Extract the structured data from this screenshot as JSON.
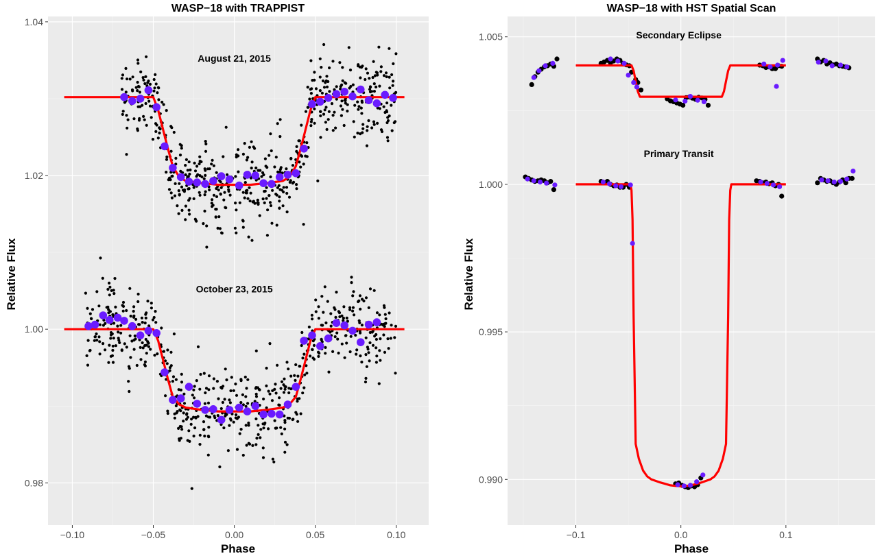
{
  "chart_data": [
    {
      "type": "scatter",
      "title": "WASP−18 with TRAPPIST",
      "xlabel": "Phase",
      "ylabel": "Relative Flux",
      "xlim": [
        -0.115,
        0.12
      ],
      "ylim": [
        0.9745,
        1.0407
      ],
      "xticks": [
        -0.1,
        -0.05,
        0.0,
        0.05,
        0.1
      ],
      "xtick_labels": [
        "−0.10",
        "−0.05",
        "0.00",
        "0.05",
        "0.10"
      ],
      "yticks": [
        0.98,
        1.0,
        1.02,
        1.04
      ],
      "ytick_labels": [
        "0.98",
        "1.00",
        "1.02",
        "1.04"
      ],
      "grid": true,
      "annotations": [
        {
          "text": "August 21, 2015",
          "x": 0.0,
          "y": 1.0348
        },
        {
          "text": "October 23, 2015",
          "x": 0.0,
          "y": 1.0048
        }
      ],
      "colors": {
        "raw": "#000000",
        "binned": "#6a1bff",
        "model": "#ff0000"
      },
      "series": [
        {
          "epoch": "August 21, 2015",
          "kind": "model",
          "x": [
            -0.105,
            -0.05,
            -0.047,
            -0.044,
            -0.041,
            -0.038,
            -0.034,
            -0.03,
            -0.02,
            -0.01,
            0.0,
            0.01,
            0.02,
            0.03,
            0.034,
            0.038,
            0.041,
            0.044,
            0.047,
            0.05,
            0.105
          ],
          "y": [
            1.0302,
            1.0302,
            1.0285,
            1.026,
            1.0235,
            1.0212,
            1.0198,
            1.0193,
            1.019,
            1.0188,
            1.0188,
            1.0188,
            1.019,
            1.0193,
            1.0198,
            1.0212,
            1.0235,
            1.026,
            1.0285,
            1.0302,
            1.0302
          ]
        },
        {
          "epoch": "August 21, 2015",
          "kind": "binned",
          "x": [
            -0.068,
            -0.063,
            -0.058,
            -0.053,
            -0.048,
            -0.043,
            -0.038,
            -0.033,
            -0.028,
            -0.023,
            -0.018,
            -0.013,
            -0.008,
            -0.003,
            0.003,
            0.008,
            0.013,
            0.018,
            0.023,
            0.028,
            0.033,
            0.038,
            0.043,
            0.048,
            0.053,
            0.058,
            0.063,
            0.068,
            0.073,
            0.078,
            0.083,
            0.088,
            0.093,
            0.098
          ],
          "y": [
            1.0302,
            1.0297,
            1.03,
            1.0311,
            1.0289,
            1.0238,
            1.021,
            1.0198,
            1.0192,
            1.0191,
            1.0189,
            1.0193,
            1.0199,
            1.0195,
            1.0187,
            1.0201,
            1.02,
            1.019,
            1.0189,
            1.0198,
            1.0201,
            1.0203,
            1.0235,
            1.0293,
            1.0296,
            1.0301,
            1.0306,
            1.0309,
            1.0303,
            1.0312,
            1.0298,
            1.0294,
            1.0305,
            1.0301
          ]
        },
        {
          "epoch": "October 23, 2015",
          "kind": "model",
          "x": [
            -0.105,
            -0.05,
            -0.047,
            -0.044,
            -0.041,
            -0.038,
            -0.034,
            -0.03,
            -0.02,
            -0.01,
            0.0,
            0.01,
            0.02,
            0.03,
            0.034,
            0.038,
            0.041,
            0.044,
            0.047,
            0.05,
            0.105
          ],
          "y": [
            1.0,
            1.0,
            0.9985,
            0.996,
            0.9935,
            0.9912,
            0.9902,
            0.9898,
            0.9895,
            0.9893,
            0.9893,
            0.9893,
            0.9895,
            0.9898,
            0.9902,
            0.9912,
            0.9935,
            0.996,
            0.9985,
            1.0,
            1.0
          ]
        },
        {
          "epoch": "October 23, 2015",
          "kind": "binned",
          "x": [
            -0.09,
            -0.086,
            -0.081,
            -0.077,
            -0.072,
            -0.068,
            -0.063,
            -0.058,
            -0.053,
            -0.048,
            -0.043,
            -0.038,
            -0.033,
            -0.028,
            -0.023,
            -0.018,
            -0.013,
            -0.008,
            -0.003,
            0.003,
            0.008,
            0.013,
            0.018,
            0.023,
            0.028,
            0.033,
            0.038,
            0.043,
            0.048,
            0.053,
            0.058,
            0.063,
            0.068,
            0.073,
            0.078,
            0.083,
            0.088
          ],
          "y": [
            1.0004,
            1.0006,
            1.0018,
            1.0012,
            1.0015,
            1.0011,
            1.0004,
            0.9992,
            0.9998,
            0.9995,
            0.9944,
            0.9908,
            0.991,
            0.9925,
            0.9903,
            0.9895,
            0.9896,
            0.9882,
            0.9895,
            0.9898,
            0.9893,
            0.99,
            0.9889,
            0.989,
            0.9889,
            0.9902,
            0.9925,
            0.9985,
            0.9992,
            0.9978,
            0.9988,
            1.0008,
            1.0005,
            0.9998,
            0.9983,
            1.0006,
            1.0009
          ]
        }
      ]
    },
    {
      "type": "scatter",
      "title": "WASP−18 with HST Spatial Scan",
      "xlabel": "Phase",
      "ylabel": "Relative Flux",
      "xlim": [
        -0.165,
        0.185
      ],
      "ylim": [
        0.98845,
        1.00569
      ],
      "xticks": [
        -0.1,
        0.0,
        0.1
      ],
      "xtick_labels": [
        "−0.1",
        "0.0",
        "0.1"
      ],
      "yticks": [
        0.99,
        0.995,
        1.0,
        1.005
      ],
      "ytick_labels": [
        "0.990",
        "0.995",
        "1.000",
        "1.005"
      ],
      "grid": true,
      "annotations": [
        {
          "text": "Secondary Eclipse",
          "x": -0.002,
          "y": 1.00495
        },
        {
          "text": "Primary Transit",
          "x": -0.002,
          "y": 1.00093
        }
      ],
      "colors": {
        "black": "#000000",
        "purple": "#6a1bff",
        "model": "#ff0000"
      },
      "series": [
        {
          "kind": "model",
          "segment": "Secondary Eclipse",
          "x": [
            -0.1,
            -0.047,
            -0.045,
            -0.043,
            -0.041,
            -0.039,
            0.039,
            0.041,
            0.043,
            0.045,
            0.047,
            0.1
          ],
          "y": [
            1.00403,
            1.00403,
            1.00385,
            1.0035,
            1.00315,
            1.00297,
            1.00297,
            1.00315,
            1.0035,
            1.00385,
            1.00403,
            1.00403
          ]
        },
        {
          "kind": "model",
          "segment": "Primary Transit",
          "x": [
            -0.1,
            -0.048,
            -0.047,
            -0.046,
            -0.045,
            -0.043,
            -0.04,
            -0.036,
            -0.032,
            -0.028,
            -0.024,
            -0.02,
            -0.015,
            -0.01,
            -0.005,
            0.0,
            0.005,
            0.01,
            0.015,
            0.02,
            0.024,
            0.028,
            0.032,
            0.036,
            0.04,
            0.043,
            0.045,
            0.046,
            0.047,
            0.048,
            0.1
          ],
          "y": [
            1.0,
            1.0,
            0.9998,
            0.9988,
            0.9955,
            0.9912,
            0.9907,
            0.9903,
            0.9901,
            0.99,
            0.98995,
            0.9899,
            0.98985,
            0.9898,
            0.98978,
            0.98977,
            0.98978,
            0.9898,
            0.98985,
            0.9899,
            0.98995,
            0.99,
            0.9901,
            0.9903,
            0.9907,
            0.9912,
            0.9955,
            0.9988,
            0.9998,
            1.0,
            1.0
          ]
        },
        {
          "kind": "data",
          "color": "black",
          "x": [
            -0.142,
            -0.139,
            -0.136,
            -0.133,
            -0.13,
            -0.127,
            -0.124,
            -0.121,
            -0.118,
            -0.076,
            -0.073,
            -0.07,
            -0.067,
            -0.064,
            -0.061,
            -0.058,
            -0.055,
            -0.052,
            -0.049,
            -0.047,
            -0.043,
            -0.041,
            -0.038,
            -0.013,
            -0.01,
            -0.007,
            -0.004,
            -0.001,
            0.002,
            0.005,
            0.008,
            0.011,
            0.014,
            0.017,
            0.02,
            0.023,
            0.026,
            0.075,
            0.078,
            0.081,
            0.084,
            0.087,
            0.09,
            0.093,
            0.096,
            0.13,
            0.133,
            0.136,
            0.139,
            0.142,
            0.145,
            0.148,
            0.151,
            0.154,
            0.157,
            0.16
          ],
          "y": [
            1.00338,
            1.00365,
            1.0038,
            1.0039,
            1.00398,
            1.00402,
            1.00408,
            1.004,
            1.00425,
            1.0041,
            1.00415,
            1.0042,
            1.00412,
            1.00418,
            1.00425,
            1.0042,
            1.0041,
            1.00405,
            1.00402,
            1.0038,
            1.00355,
            1.00345,
            1.0032,
            1.0029,
            1.00283,
            1.0028,
            1.00276,
            1.00272,
            1.00268,
            1.00294,
            1.00296,
            1.00292,
            1.00288,
            1.00295,
            1.00293,
            1.00288,
            1.00268,
            1.00404,
            1.00402,
            1.00396,
            1.00398,
            1.00392,
            1.00392,
            1.00402,
            1.004,
            1.00425,
            1.00415,
            1.0042,
            1.00408,
            1.00412,
            1.00405,
            1.00408,
            1.00402,
            1.004,
            1.00398,
            1.00395
          ]
        },
        {
          "kind": "data",
          "color": "purple",
          "x": [
            -0.14,
            -0.135,
            -0.129,
            -0.122,
            -0.067,
            -0.06,
            -0.054,
            -0.05,
            -0.045,
            -0.042,
            -0.005,
            0.004,
            0.009,
            0.016,
            0.022,
            0.079,
            0.085,
            0.092,
            0.091,
            0.097,
            0.131,
            0.138,
            0.144,
            0.152,
            0.158
          ],
          "y": [
            1.00362,
            1.00385,
            1.00402,
            1.0041,
            1.00425,
            1.00418,
            1.0041,
            1.0037,
            1.00345,
            1.0033,
            1.00286,
            1.00282,
            1.00298,
            1.00285,
            1.0028,
            1.00408,
            1.00398,
            1.00404,
            1.00332,
            1.0042,
            1.00414,
            1.00418,
            1.00402,
            1.00404,
            1.00398
          ]
        },
        {
          "kind": "data",
          "color": "black",
          "x": [
            -0.148,
            -0.145,
            -0.142,
            -0.139,
            -0.136,
            -0.133,
            -0.13,
            -0.127,
            -0.124,
            -0.121,
            -0.076,
            -0.073,
            -0.07,
            -0.067,
            -0.064,
            -0.061,
            -0.058,
            -0.055,
            -0.052,
            -0.049,
            -0.005,
            -0.002,
            0.001,
            0.004,
            0.007,
            0.01,
            0.013,
            0.016,
            0.019,
            0.072,
            0.075,
            0.078,
            0.081,
            0.084,
            0.087,
            0.09,
            0.093,
            0.096,
            0.13,
            0.133,
            0.136,
            0.139,
            0.142,
            0.145,
            0.148,
            0.151,
            0.154,
            0.157,
            0.16,
            0.163
          ],
          "y": [
            1.00025,
            1.0002,
            1.00015,
            1.0001,
            1.00012,
            1.00015,
            1.00012,
            1.00005,
            1.0001,
            0.99982,
            1.0001,
            1.00005,
            1.0001,
            1.0,
            0.99995,
            0.99998,
            0.9999,
            0.9999,
            1.0,
            0.9999,
            0.98985,
            0.98988,
            0.9898,
            0.98975,
            0.98972,
            0.98978,
            0.98975,
            0.98982,
            0.99005,
            1.00012,
            1.0001,
            1.00005,
            1.00008,
            1.00002,
            1.00005,
            0.99995,
            1.0,
            0.9996,
            1.00005,
            1.0002,
            1.00015,
            1.0001,
            1.00012,
            1.00005,
            1.0,
            1.00008,
            1.00015,
            1.00005,
            1.0002,
            1.0002
          ]
        },
        {
          "kind": "data",
          "color": "purple",
          "x": [
            -0.146,
            -0.14,
            -0.134,
            -0.128,
            -0.12,
            -0.074,
            -0.068,
            -0.062,
            -0.057,
            -0.048,
            -0.046,
            -0.003,
            0.003,
            0.009,
            0.015,
            0.021,
            0.076,
            0.082,
            0.088,
            0.094,
            0.134,
            0.14,
            0.146,
            0.152,
            0.158,
            0.164
          ],
          "y": [
            1.00018,
            1.00012,
            1.00008,
            1.00004,
            0.99998,
            1.00008,
            1.00002,
            0.99995,
            0.99992,
            0.99998,
            0.998,
            0.98982,
            0.98978,
            0.9898,
            0.98992,
            0.99015,
            1.00008,
            1.00003,
            0.99998,
            0.99992,
            1.00015,
            1.00012,
            1.00008,
            1.0001,
            1.00018,
            1.00045
          ]
        }
      ]
    }
  ]
}
